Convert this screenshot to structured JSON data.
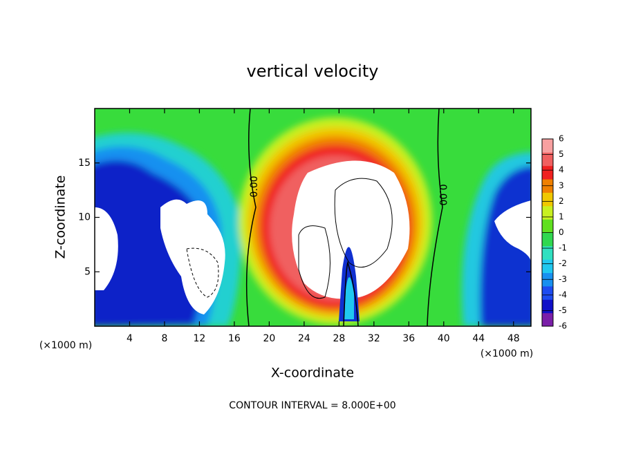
{
  "chart_data": {
    "type": "contour",
    "title": "vertical velocity",
    "x_label": "X-coordinate",
    "y_label": "Z-coordinate",
    "x_unit": "(×1000 m)",
    "y_unit": "(×1000 m)",
    "xlim": [
      0,
      50
    ],
    "xticks": [
      4,
      8,
      12,
      16,
      20,
      24,
      28,
      32,
      36,
      40,
      44,
      48
    ],
    "ylim": [
      0,
      20
    ],
    "yticks": [
      5,
      10,
      15
    ],
    "clim": [
      -6,
      6
    ],
    "cticks": [
      -6,
      -5,
      -4,
      -3,
      -2,
      -1,
      0,
      1,
      2,
      3,
      4,
      5,
      6
    ],
    "colors": [
      "#7a1fa8",
      "#1010c8",
      "#1e4cf0",
      "#1890f0",
      "#20c8f0",
      "#30e0c0",
      "#30d850",
      "#60e020",
      "#c8f020",
      "#f0c800",
      "#f08000",
      "#f02020",
      "#f06060",
      "#f8a0a0"
    ],
    "contour_labels": [
      "0.00",
      "0.00"
    ],
    "footer": "CONTOUR INTERVAL = 8.000E+00"
  }
}
